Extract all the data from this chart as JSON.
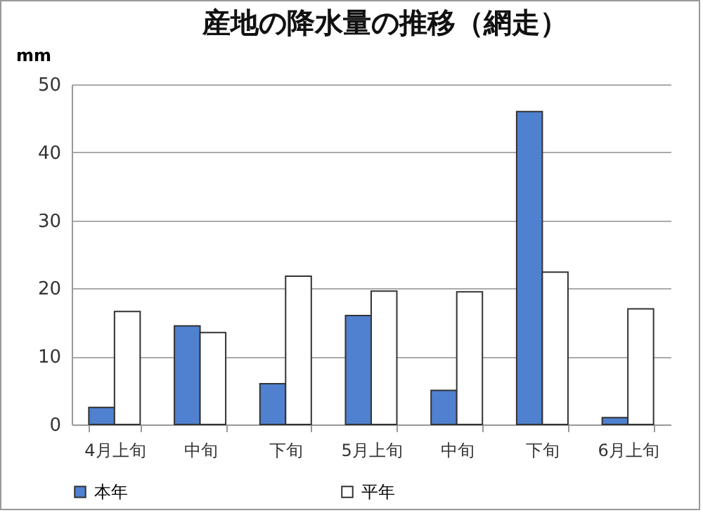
{
  "chart_data": {
    "type": "bar",
    "title": "産地の降水量の推移（網走）",
    "ylabel": "mm",
    "categories": [
      "4月上旬",
      "中旬",
      "下旬",
      "5月上旬",
      "中旬",
      "下旬",
      "6月上旬"
    ],
    "series": [
      {
        "name": "本年",
        "color": "#4f81d0",
        "values": [
          2.5,
          14.5,
          6,
          16,
          5,
          46,
          1
        ]
      },
      {
        "name": "平年",
        "color": "#ffffff",
        "values": [
          16.6,
          13.5,
          21.8,
          19.6,
          19.5,
          22.4,
          17
        ]
      }
    ],
    "ylim": [
      0,
      50
    ],
    "yticks": [
      0,
      10,
      20,
      30,
      40,
      50
    ],
    "grid": "y",
    "legend": "bottom"
  }
}
